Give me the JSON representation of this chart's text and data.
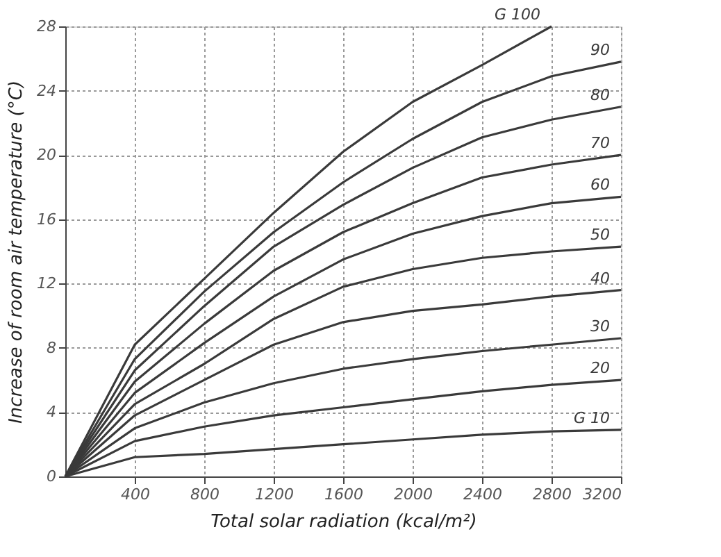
{
  "chart_data": {
    "type": "line",
    "xlabel": "Total solar radiation   (kcal/m²)",
    "ylabel": "Increase of room air temperature (°C)",
    "x": [
      0,
      400,
      800,
      1200,
      1600,
      2000,
      2400,
      2800,
      3200
    ],
    "series": [
      {
        "name": "G 100",
        "color": "#3a3a3a",
        "values": [
          0,
          8.2,
          12.3,
          16.4,
          20.2,
          23.3,
          25.6,
          28,
          null
        ]
      },
      {
        "name": "90",
        "color": "#3a3a3a",
        "values": [
          0,
          7.3,
          11.5,
          15.2,
          18.3,
          21.0,
          23.3,
          24.9,
          25.8
        ]
      },
      {
        "name": "80",
        "color": "#3a3a3a",
        "values": [
          0,
          6.6,
          10.6,
          14.3,
          16.9,
          19.2,
          21.1,
          22.2,
          23.0
        ]
      },
      {
        "name": "70",
        "color": "#3a3a3a",
        "values": [
          0,
          5.9,
          9.5,
          12.8,
          15.2,
          17.0,
          18.6,
          19.4,
          20.0
        ]
      },
      {
        "name": "60",
        "color": "#3a3a3a",
        "values": [
          0,
          5.2,
          8.3,
          11.2,
          13.5,
          15.1,
          16.2,
          17.0,
          17.4
        ]
      },
      {
        "name": "50",
        "color": "#3a3a3a",
        "values": [
          0,
          4.5,
          7.0,
          9.8,
          11.8,
          12.9,
          13.6,
          14.0,
          14.3
        ]
      },
      {
        "name": "40",
        "color": "#3a3a3a",
        "values": [
          0,
          3.8,
          6.0,
          8.2,
          9.6,
          10.3,
          10.7,
          11.2,
          11.6
        ]
      },
      {
        "name": "30",
        "color": "#3a3a3a",
        "values": [
          0,
          3.0,
          4.6,
          5.8,
          6.7,
          7.3,
          7.8,
          8.2,
          8.6
        ]
      },
      {
        "name": "20",
        "color": "#3a3a3a",
        "values": [
          0,
          2.2,
          3.1,
          3.8,
          4.3,
          4.8,
          5.3,
          5.7,
          6.0
        ]
      },
      {
        "name": "G 10",
        "color": "#3a3a3a",
        "values": [
          0,
          1.2,
          1.4,
          1.7,
          2.0,
          2.3,
          2.6,
          2.8,
          2.9
        ]
      }
    ],
    "xlim": [
      0,
      3200
    ],
    "xticks": [
      400,
      800,
      1200,
      1600,
      2000,
      2400,
      2800,
      3200
    ],
    "ylim": [
      0,
      28
    ],
    "yticks": [
      0,
      4,
      8,
      12,
      16,
      20,
      24,
      28
    ],
    "grid": true,
    "legend": false,
    "marker": "none",
    "line_style": "solid"
  }
}
